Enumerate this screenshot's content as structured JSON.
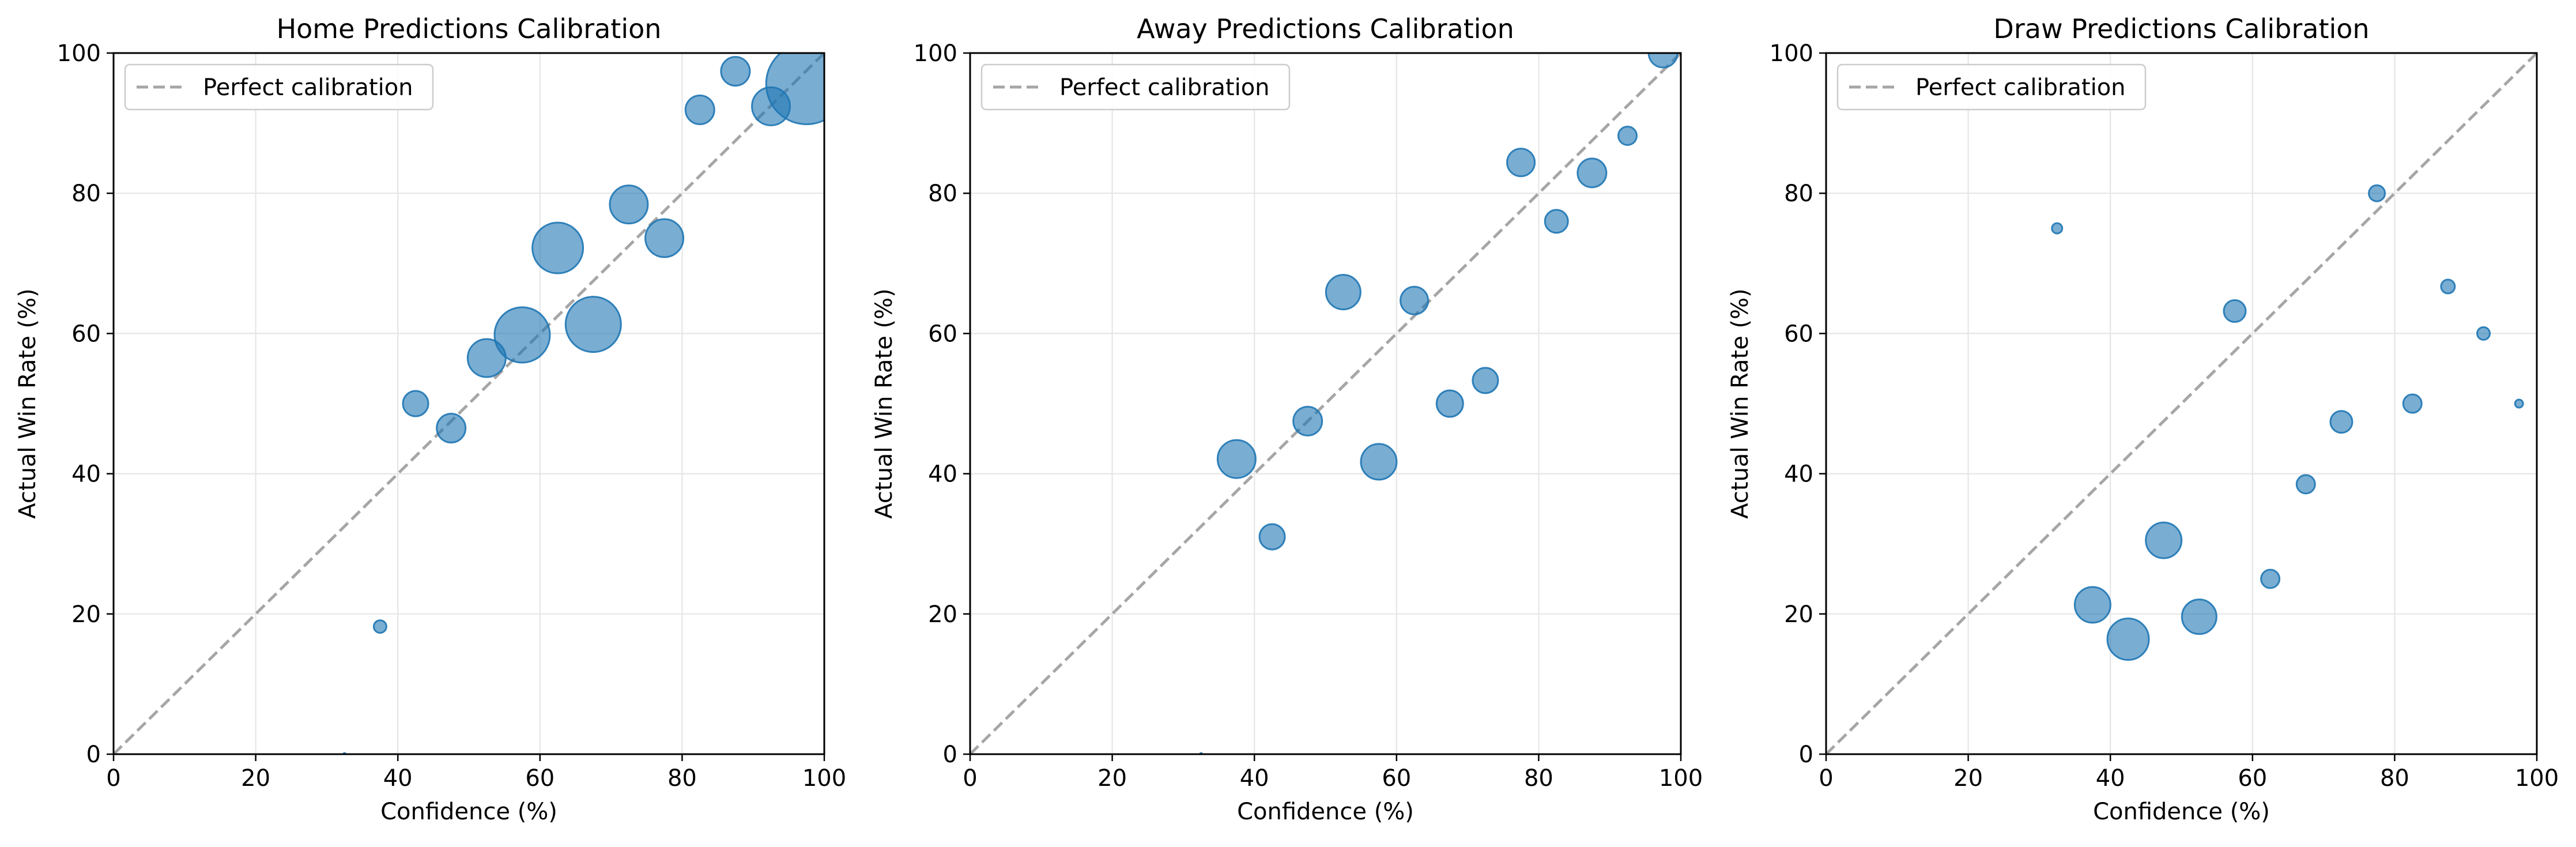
{
  "chart_data": [
    {
      "type": "scatter",
      "title": "Home Predictions Calibration",
      "xlabel": "Confidence (%)",
      "ylabel": "Actual Win Rate (%)",
      "xlim": [
        0,
        100
      ],
      "ylim": [
        0,
        100
      ],
      "xticks": [
        "0",
        "20",
        "40",
        "60",
        "80",
        "100"
      ],
      "yticks": [
        "0",
        "20",
        "40",
        "60",
        "80",
        "100"
      ],
      "grid": true,
      "legend_position": "top-left",
      "reference_line": {
        "name": "Perfect calibration",
        "color": "#a6a6a6",
        "style": "dashed"
      },
      "series": [
        {
          "color": "#1f77b4",
          "points": [
            {
              "x": 32.5,
              "y": 0,
              "size": 2
            },
            {
              "x": 37.5,
              "y": 18.2,
              "size": 11
            },
            {
              "x": 42.5,
              "y": 50,
              "size": 22
            },
            {
              "x": 47.5,
              "y": 46.5,
              "size": 25
            },
            {
              "x": 52.5,
              "y": 56.5,
              "size": 33
            },
            {
              "x": 57.5,
              "y": 59.8,
              "size": 48
            },
            {
              "x": 62.5,
              "y": 72.2,
              "size": 44
            },
            {
              "x": 67.5,
              "y": 61.3,
              "size": 48
            },
            {
              "x": 72.5,
              "y": 78.4,
              "size": 33
            },
            {
              "x": 77.5,
              "y": 73.6,
              "size": 33
            },
            {
              "x": 82.5,
              "y": 91.9,
              "size": 25
            },
            {
              "x": 87.5,
              "y": 97.4,
              "size": 25
            },
            {
              "x": 92.5,
              "y": 92.4,
              "size": 33
            },
            {
              "x": 97.5,
              "y": 95.6,
              "size": 70
            }
          ]
        }
      ]
    },
    {
      "type": "scatter",
      "title": "Away Predictions Calibration",
      "xlabel": "Confidence (%)",
      "ylabel": "Actual Win Rate (%)",
      "xlim": [
        0,
        100
      ],
      "ylim": [
        0,
        100
      ],
      "xticks": [
        "0",
        "20",
        "40",
        "60",
        "80",
        "100"
      ],
      "yticks": [
        "0",
        "20",
        "40",
        "60",
        "80",
        "100"
      ],
      "grid": true,
      "legend_position": "top-left",
      "reference_line": {
        "name": "Perfect calibration",
        "color": "#a6a6a6",
        "style": "dashed"
      },
      "series": [
        {
          "color": "#1f77b4",
          "points": [
            {
              "x": 32.5,
              "y": 0,
              "size": 2
            },
            {
              "x": 37.5,
              "y": 42.1,
              "size": 33
            },
            {
              "x": 42.5,
              "y": 31,
              "size": 22
            },
            {
              "x": 47.5,
              "y": 47.5,
              "size": 25
            },
            {
              "x": 52.5,
              "y": 65.9,
              "size": 30
            },
            {
              "x": 57.5,
              "y": 41.7,
              "size": 31
            },
            {
              "x": 62.5,
              "y": 64.7,
              "size": 24
            },
            {
              "x": 67.5,
              "y": 50,
              "size": 23
            },
            {
              "x": 72.5,
              "y": 53.3,
              "size": 22
            },
            {
              "x": 77.5,
              "y": 84.4,
              "size": 24
            },
            {
              "x": 82.5,
              "y": 76,
              "size": 20
            },
            {
              "x": 87.5,
              "y": 82.9,
              "size": 25
            },
            {
              "x": 92.5,
              "y": 88.2,
              "size": 16
            },
            {
              "x": 97.5,
              "y": 100,
              "size": 25
            }
          ]
        }
      ]
    },
    {
      "type": "scatter",
      "title": "Draw Predictions Calibration",
      "xlabel": "Confidence (%)",
      "ylabel": "Actual Win Rate (%)",
      "xlim": [
        0,
        100
      ],
      "ylim": [
        0,
        100
      ],
      "xticks": [
        "0",
        "20",
        "40",
        "60",
        "80",
        "100"
      ],
      "yticks": [
        "0",
        "20",
        "40",
        "60",
        "80",
        "100"
      ],
      "grid": true,
      "legend_position": "top-left",
      "reference_line": {
        "name": "Perfect calibration",
        "color": "#a6a6a6",
        "style": "dashed"
      },
      "series": [
        {
          "color": "#1f77b4",
          "points": [
            {
              "x": 32.5,
              "y": 75,
              "size": 9
            },
            {
              "x": 37.5,
              "y": 21.3,
              "size": 31
            },
            {
              "x": 42.5,
              "y": 16.4,
              "size": 36
            },
            {
              "x": 47.5,
              "y": 30.5,
              "size": 31
            },
            {
              "x": 52.5,
              "y": 19.6,
              "size": 30
            },
            {
              "x": 57.5,
              "y": 63.2,
              "size": 19
            },
            {
              "x": 62.5,
              "y": 25,
              "size": 16
            },
            {
              "x": 67.5,
              "y": 38.5,
              "size": 16
            },
            {
              "x": 72.5,
              "y": 47.4,
              "size": 19
            },
            {
              "x": 77.5,
              "y": 80,
              "size": 14
            },
            {
              "x": 82.5,
              "y": 50,
              "size": 16
            },
            {
              "x": 87.5,
              "y": 66.7,
              "size": 12
            },
            {
              "x": 92.5,
              "y": 60,
              "size": 11
            },
            {
              "x": 97.5,
              "y": 50,
              "size": 7
            }
          ]
        }
      ]
    }
  ]
}
